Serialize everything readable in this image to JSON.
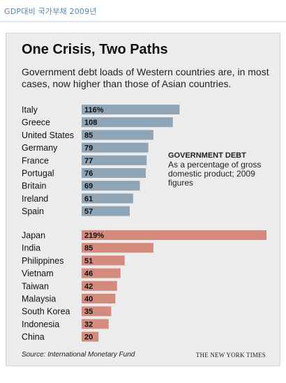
{
  "caption": "GDP대비 국가부채 2009년",
  "title": "One Crisis, Two Paths",
  "subtitle": "Government debt loads of Western countries are, in most cases, now higher than those of Asian countries.",
  "note": {
    "title": "GOVERNMENT DEBT",
    "body": "As a percentage of gross domestic product; 2009 figures"
  },
  "source": "Source: International Monetary Fund",
  "credit": "THE NEW YORK TIMES",
  "colors": {
    "western": "#8fa4b5",
    "asian": "#d48a7c",
    "panel": "#ececec"
  },
  "chart_data": {
    "type": "bar",
    "orientation": "horizontal",
    "xlim": [
      0,
      219
    ],
    "grid": false,
    "groups": [
      {
        "color_key": "western",
        "categories": [
          "Italy",
          "Greece",
          "United States",
          "Germany",
          "France",
          "Portugal",
          "Britain",
          "Ireland",
          "Spain"
        ],
        "values": [
          116,
          108,
          85,
          79,
          77,
          76,
          69,
          61,
          57
        ],
        "labels": [
          "116%",
          "108",
          "85",
          "79",
          "77",
          "76",
          "69",
          "61",
          "57"
        ]
      },
      {
        "color_key": "asian",
        "categories": [
          "Japan",
          "India",
          "Philippines",
          "Vietnam",
          "Taiwan",
          "Malaysia",
          "South Korea",
          "Indonesia",
          "China"
        ],
        "values": [
          219,
          85,
          51,
          46,
          42,
          40,
          35,
          32,
          20
        ],
        "labels": [
          "219%",
          "85",
          "51",
          "46",
          "42",
          "40",
          "35",
          "32",
          "20"
        ]
      }
    ]
  }
}
